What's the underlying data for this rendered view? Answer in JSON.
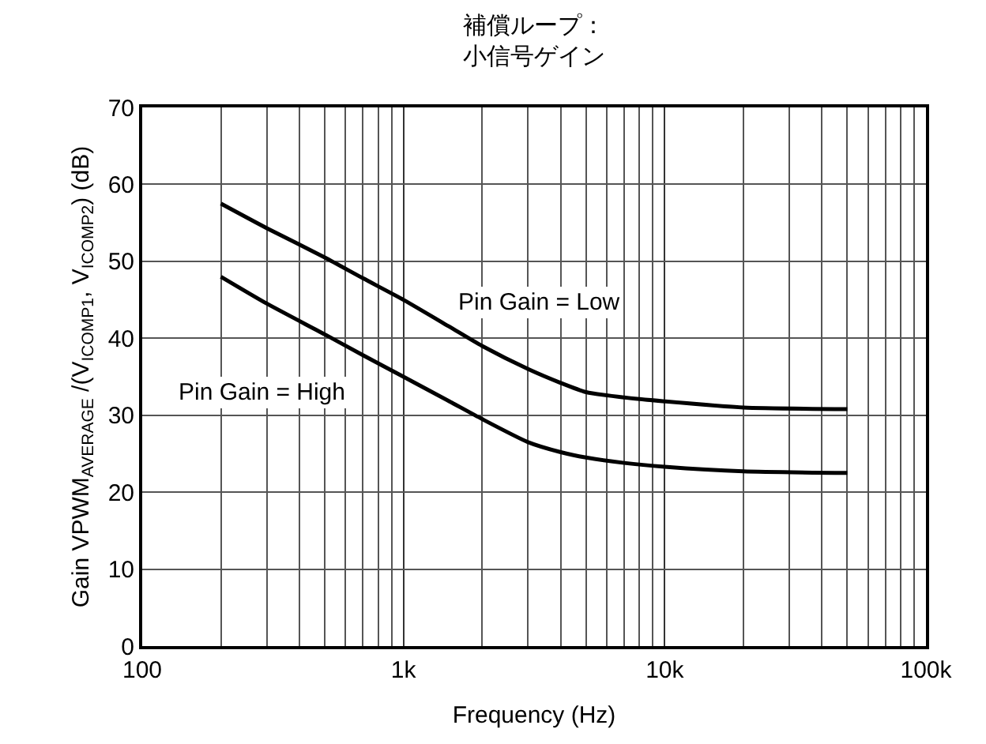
{
  "chart_data": {
    "type": "line",
    "title": "補償ループ：",
    "subtitle": "小信号ゲイン",
    "xlabel": "Frequency (Hz)",
    "ylabel": "Gain VPWM$_{AVERAGE}$ /(V$_{ICOMP1}$, V$_{ICOMP2}$) (dB)",
    "x": [
      200,
      300,
      500,
      700,
      1000,
      1500,
      2000,
      3000,
      4000,
      5000,
      7000,
      10000,
      20000,
      50000
    ],
    "series": [
      {
        "name": "Pin Gain = Low",
        "color": "#000000",
        "values": [
          57.5,
          54.3,
          50.5,
          47.8,
          45,
          41.5,
          39,
          36,
          34.2,
          33,
          32.3,
          31.8,
          31,
          30.8
        ]
      },
      {
        "name": "Pin Gain = High",
        "color": "#000000",
        "values": [
          48,
          44.5,
          40.5,
          37.8,
          35,
          31.8,
          29.5,
          26.5,
          25.2,
          24.5,
          23.8,
          23.3,
          22.7,
          22.5
        ]
      }
    ],
    "log": "x",
    "xlim": [
      100,
      100000
    ],
    "xticks": [
      100,
      {
        "value": 1000,
        "label": "1k"
      },
      {
        "value": 10000,
        "label": "10k"
      },
      {
        "value": 100000,
        "label": "100k"
      }
    ],
    "ylim": [
      0,
      70
    ],
    "yticks": [
      0,
      10,
      20,
      30,
      40,
      50,
      60,
      70
    ],
    "grid": true,
    "legend": false,
    "line_style": "solid",
    "marker": "none"
  }
}
